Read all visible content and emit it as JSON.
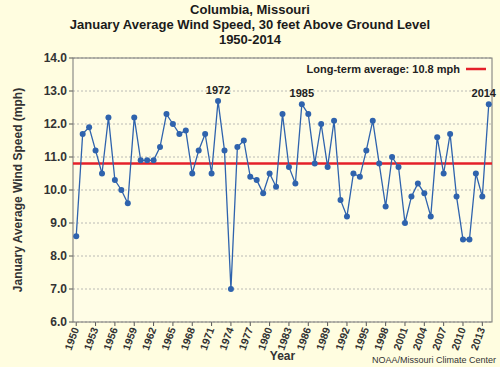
{
  "chart_data": {
    "type": "line",
    "title": "Columbia, Missouri",
    "subtitle": [
      "January Average Wind Speed, 30 feet Above Ground Level",
      "1950-2014"
    ],
    "x_label": "Year",
    "y_label": "January Average Wind Speed (mph)",
    "source": "NOAA/Missouri Climate Center",
    "x": [
      1950,
      1951,
      1952,
      1953,
      1954,
      1955,
      1956,
      1957,
      1958,
      1959,
      1960,
      1961,
      1962,
      1963,
      1964,
      1965,
      1966,
      1967,
      1968,
      1969,
      1970,
      1971,
      1972,
      1973,
      1974,
      1975,
      1976,
      1977,
      1978,
      1979,
      1980,
      1981,
      1982,
      1983,
      1984,
      1985,
      1986,
      1987,
      1988,
      1989,
      1990,
      1991,
      1992,
      1993,
      1994,
      1995,
      1996,
      1997,
      1998,
      1999,
      2000,
      2001,
      2002,
      2003,
      2004,
      2005,
      2006,
      2007,
      2008,
      2009,
      2010,
      2011,
      2012,
      2013,
      2014
    ],
    "series": [
      {
        "name": "January Average Wind Speed",
        "color": "#2f63ad",
        "marker": "circle",
        "values": [
          8.6,
          11.7,
          11.9,
          11.2,
          10.5,
          12.2,
          10.3,
          10.0,
          9.6,
          12.2,
          10.9,
          10.9,
          10.9,
          11.3,
          12.3,
          12.0,
          11.7,
          11.8,
          10.5,
          11.2,
          11.7,
          10.5,
          12.7,
          11.2,
          7.0,
          11.3,
          11.5,
          10.4,
          10.3,
          9.9,
          10.5,
          10.1,
          12.3,
          10.7,
          10.2,
          12.6,
          12.3,
          10.8,
          12.0,
          10.7,
          12.1,
          9.7,
          9.2,
          10.5,
          10.4,
          11.2,
          12.1,
          10.8,
          9.5,
          11.0,
          10.7,
          9.0,
          9.8,
          10.2,
          9.9,
          9.2,
          11.6,
          10.5,
          11.7,
          9.8,
          8.5,
          8.5,
          10.5,
          9.8,
          12.6
        ]
      }
    ],
    "reference_line": {
      "name": "Long-term average: 10.8 mph",
      "value": 10.8,
      "color": "#e4202a"
    },
    "annotations": [
      {
        "text": "1972",
        "x": 1972
      },
      {
        "text": "1985",
        "x": 1985
      },
      {
        "text": "2014",
        "x": 2014
      }
    ],
    "xlim": [
      1949.5,
      2014.5
    ],
    "xticks": [
      1950,
      1953,
      1956,
      1959,
      1962,
      1965,
      1968,
      1971,
      1974,
      1977,
      1980,
      1983,
      1986,
      1989,
      1992,
      1995,
      1998,
      2001,
      2004,
      2007,
      2010,
      2013
    ],
    "ylim": [
      6,
      14
    ],
    "yticks": [
      {
        "value": 6,
        "label": "6.0"
      },
      {
        "value": 7,
        "label": "7.0"
      },
      {
        "value": 8,
        "label": "8.0"
      },
      {
        "value": 9,
        "label": "9.0"
      },
      {
        "value": 10,
        "label": "10.0"
      },
      {
        "value": 11,
        "label": "11.0"
      },
      {
        "value": 12,
        "label": "12.0"
      },
      {
        "value": 13,
        "label": "13.0"
      },
      {
        "value": 14,
        "label": "14.0"
      }
    ],
    "grid": true,
    "legend": "upper right"
  }
}
